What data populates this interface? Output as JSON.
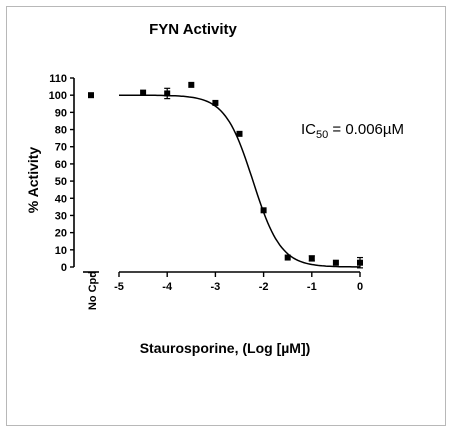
{
  "chart_data": {
    "type": "scatter",
    "title": "FYN Activity",
    "xlabel": "Staurosporine, (Log [µM])",
    "ylabel": "% Activity",
    "x_control_label": "No Cpd",
    "control_point": {
      "label": "No Cpd",
      "y": 100
    },
    "xlim": [
      -5,
      0
    ],
    "ylim": [
      0,
      110
    ],
    "x_ticks": [
      -5,
      -4,
      -3,
      -2,
      -1,
      0
    ],
    "y_ticks": [
      0,
      10,
      20,
      30,
      40,
      50,
      60,
      70,
      80,
      90,
      100,
      110
    ],
    "series": [
      {
        "points": [
          {
            "x": -4.5,
            "y": 101.5
          },
          {
            "x": -4.0,
            "y": 101.0,
            "err": 3
          },
          {
            "x": -3.5,
            "y": 106.0
          },
          {
            "x": -3.0,
            "y": 95.5
          },
          {
            "x": -2.5,
            "y": 77.5
          },
          {
            "x": -2.0,
            "y": 33.0
          },
          {
            "x": -1.5,
            "y": 5.5
          },
          {
            "x": -1.0,
            "y": 5.0,
            "err": 1.5
          },
          {
            "x": -0.5,
            "y": 2.5
          },
          {
            "x": 0.0,
            "y": 2.5,
            "err": 3
          }
        ]
      }
    ],
    "fit": {
      "top": 100,
      "bottom": 0,
      "log_ic50": -2.22,
      "hill": 1.5
    },
    "annotation": {
      "prefix": "IC",
      "subscript": "50",
      "suffix": " = 0.006µM"
    },
    "grid": false,
    "legend": "none"
  }
}
